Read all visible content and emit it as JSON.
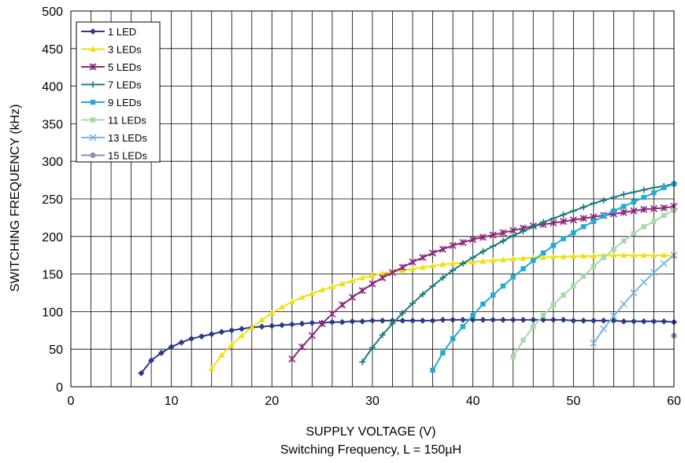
{
  "chart_data": {
    "type": "line",
    "title": "",
    "xlabel": "SUPPLY VOLTAGE (V)",
    "ylabel": "SWITCHING FREQUENCY (kHz)",
    "caption": "Switching Frequency, L = 150µH",
    "xlim": [
      0,
      60
    ],
    "ylim": [
      0,
      500
    ],
    "xticks": [
      "0",
      "10",
      "20",
      "30",
      "40",
      "50",
      "60"
    ],
    "yticks": [
      "0",
      "50",
      "100",
      "150",
      "200",
      "250",
      "300",
      "350",
      "400",
      "450",
      "500"
    ],
    "grid": true,
    "legend_position": "top-left",
    "series": [
      {
        "name": "1 LED",
        "color": "#2e3a87",
        "marker": "diamond",
        "x": [
          7,
          8,
          9,
          10,
          11,
          12,
          13,
          14,
          15,
          16,
          17,
          18,
          19,
          20,
          21,
          22,
          23,
          24,
          25,
          26,
          27,
          28,
          29,
          30,
          31,
          32,
          33,
          34,
          35,
          36,
          37,
          38,
          39,
          40,
          41,
          42,
          43,
          44,
          45,
          46,
          47,
          48,
          49,
          50,
          51,
          52,
          53,
          54,
          55,
          56,
          57,
          58,
          59,
          60
        ],
        "y": [
          18,
          35,
          45,
          53,
          59,
          64,
          67,
          70,
          73,
          75,
          77,
          79,
          80,
          81,
          82,
          83,
          84,
          85,
          85,
          86,
          86,
          87,
          87,
          88,
          88,
          88,
          88,
          88,
          88,
          88,
          89,
          89,
          89,
          89,
          89,
          89,
          89,
          89,
          89,
          89,
          89,
          89,
          89,
          88,
          88,
          88,
          88,
          88,
          87,
          87,
          87,
          87,
          87,
          86
        ]
      },
      {
        "name": "3 LEDs",
        "color": "#f0e010",
        "marker": "triangle",
        "x": [
          14,
          15,
          16,
          17,
          18,
          19,
          20,
          21,
          22,
          23,
          24,
          25,
          26,
          27,
          28,
          29,
          30,
          31,
          32,
          33,
          34,
          35,
          36,
          37,
          38,
          39,
          40,
          41,
          42,
          43,
          44,
          45,
          46,
          47,
          48,
          49,
          50,
          51,
          52,
          53,
          54,
          55,
          56,
          57,
          58,
          59,
          60
        ],
        "y": [
          24,
          42,
          56,
          68,
          79,
          89,
          98,
          106,
          113,
          119,
          124,
          129,
          133,
          137,
          141,
          145,
          148,
          151,
          153,
          155,
          157,
          159,
          161,
          163,
          164,
          165,
          166,
          167,
          168,
          169,
          170,
          171,
          172,
          172,
          173,
          173,
          174,
          174,
          174,
          175,
          175,
          175,
          175,
          175,
          175,
          175,
          174
        ]
      },
      {
        "name": "5 LEDs",
        "color": "#8b2a7a",
        "marker": "star",
        "x": [
          22,
          23,
          24,
          25,
          26,
          27,
          28,
          29,
          30,
          31,
          32,
          33,
          34,
          35,
          36,
          37,
          38,
          39,
          40,
          41,
          42,
          43,
          44,
          45,
          46,
          47,
          48,
          49,
          50,
          51,
          52,
          53,
          54,
          55,
          56,
          57,
          58,
          59,
          60
        ],
        "y": [
          37,
          53,
          68,
          84,
          97,
          109,
          119,
          128,
          137,
          145,
          152,
          159,
          166,
          172,
          178,
          183,
          188,
          192,
          196,
          199,
          202,
          205,
          208,
          211,
          214,
          216,
          218,
          220,
          222,
          224,
          226,
          228,
          230,
          232,
          234,
          236,
          237,
          238,
          240
        ]
      },
      {
        "name": "7 LEDs",
        "color": "#1a7a7a",
        "marker": "plus",
        "x": [
          29,
          30,
          31,
          32,
          33,
          34,
          35,
          36,
          37,
          38,
          39,
          40,
          41,
          42,
          43,
          44,
          45,
          46,
          47,
          48,
          49,
          50,
          51,
          52,
          53,
          54,
          55,
          56,
          57,
          58,
          59,
          60
        ],
        "y": [
          33,
          52,
          69,
          84,
          98,
          111,
          123,
          134,
          145,
          155,
          164,
          172,
          180,
          187,
          194,
          201,
          207,
          213,
          219,
          224,
          229,
          234,
          239,
          244,
          248,
          252,
          256,
          259,
          262,
          265,
          267,
          270
        ]
      },
      {
        "name": "9 LEDs",
        "color": "#22aad0",
        "marker": "square",
        "x": [
          36,
          37,
          38,
          39,
          40,
          41,
          42,
          43,
          44,
          45,
          46,
          47,
          48,
          49,
          50,
          51,
          52,
          53,
          54,
          55,
          56,
          57,
          58,
          59,
          60
        ],
        "y": [
          22,
          45,
          64,
          80,
          95,
          110,
          122,
          134,
          146,
          157,
          168,
          178,
          188,
          197,
          205,
          213,
          220,
          227,
          234,
          240,
          246,
          252,
          258,
          265,
          270
        ]
      },
      {
        "name": "11 LEDs",
        "color": "#a8d8a8",
        "marker": "square",
        "x": [
          44,
          45,
          46,
          47,
          48,
          49,
          50,
          51,
          52,
          53,
          54,
          55,
          56,
          57,
          58,
          59,
          60
        ],
        "y": [
          40,
          62,
          80,
          95,
          109,
          122,
          134,
          147,
          160,
          172,
          183,
          194,
          204,
          213,
          220,
          228,
          235
        ]
      },
      {
        "name": "13 LEDs",
        "color": "#78b8e0",
        "marker": "x",
        "x": [
          52,
          53,
          54,
          55,
          56,
          57,
          58,
          59,
          60
        ],
        "y": [
          58,
          77,
          94,
          110,
          125,
          139,
          152,
          164,
          175
        ]
      },
      {
        "name": "15 LEDs",
        "color": "#9a88c0",
        "marker": "circle",
        "x": [
          60
        ],
        "y": [
          68
        ]
      }
    ]
  }
}
